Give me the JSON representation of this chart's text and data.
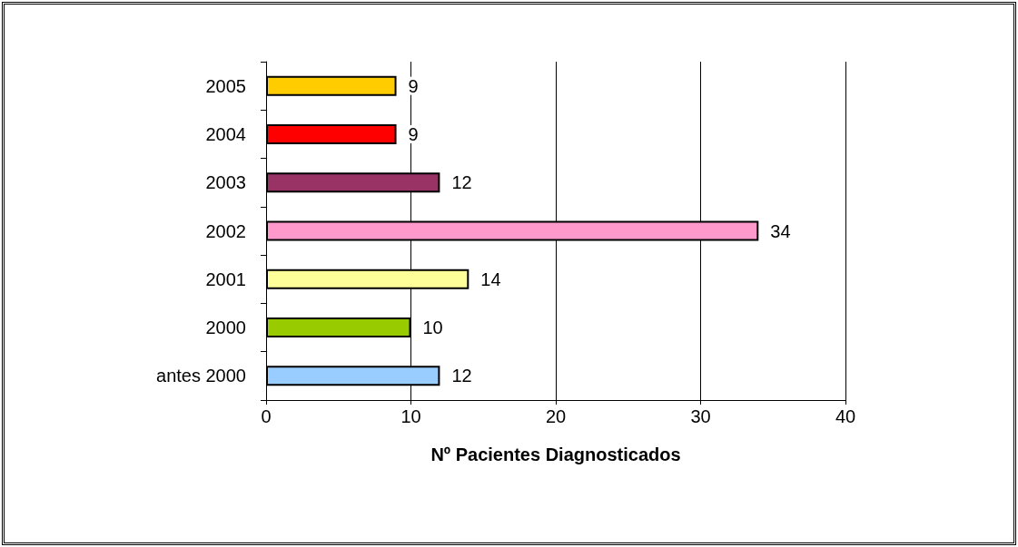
{
  "chart_data": {
    "type": "bar",
    "orientation": "horizontal",
    "xlabel": "Nº Pacientes Diagnosticados",
    "categories": [
      "2005",
      "2004",
      "2003",
      "2002",
      "2001",
      "2000",
      "antes 2000"
    ],
    "values": [
      9,
      9,
      12,
      34,
      14,
      10,
      12
    ],
    "colors": [
      "#ffcc00",
      "#ff0000",
      "#993366",
      "#ff99cc",
      "#ffff99",
      "#99cc00",
      "#99ccff"
    ],
    "xlim": [
      0,
      40
    ],
    "xticks": [
      0,
      10,
      20,
      30,
      40
    ],
    "grid": "x",
    "data_labels": true
  }
}
